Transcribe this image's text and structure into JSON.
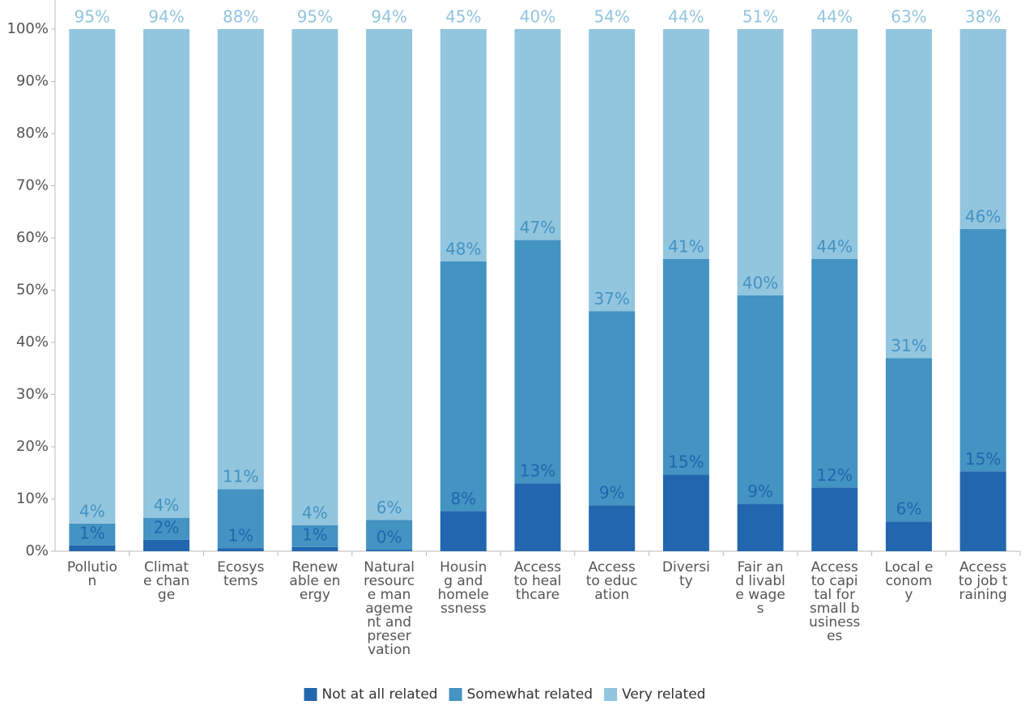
{
  "chart_data": {
    "type": "stacked_bar_percent",
    "categories": [
      "Pollution",
      "Climate change",
      "Ecosystems",
      "Renewable energy",
      "Natural resource management and preservation",
      "Housing and homelessness",
      "Access to healthcare",
      "Access to education",
      "Diversity",
      "Fair and livable wages",
      "Access to capital for small businesses",
      "Local economy",
      "Access to job training"
    ],
    "series": [
      {
        "name": "Not at all related",
        "color": "#2166ae",
        "values": [
          1.1,
          2.2,
          0.6,
          0.8,
          0.3,
          7.7,
          13.0,
          8.8,
          14.7,
          9.1,
          12.2,
          5.7,
          15.3
        ],
        "value_labels": [
          "1%",
          "2%",
          "1%",
          "1%",
          "0%",
          "8%",
          "13%",
          "9%",
          "15%",
          "9%",
          "12%",
          "6%",
          "15%"
        ]
      },
      {
        "name": "Somewhat related",
        "color": "#4393c3",
        "values": [
          4.2,
          4.2,
          11.3,
          4.2,
          5.7,
          47.8,
          46.6,
          37.2,
          41.3,
          39.9,
          43.8,
          31.3,
          46.4
        ],
        "value_labels": [
          "4%",
          "4%",
          "11%",
          "4%",
          "6%",
          "48%",
          "47%",
          "37%",
          "41%",
          "40%",
          "44%",
          "31%",
          "46%"
        ]
      },
      {
        "name": "Very related",
        "color": "#92c5de",
        "values": [
          94.7,
          93.6,
          88.1,
          95.0,
          94.0,
          44.5,
          40.4,
          54.0,
          44.0,
          51.0,
          44.0,
          63.0,
          38.3
        ],
        "value_labels": [
          "95%",
          "94%",
          "88%",
          "95%",
          "94%",
          "45%",
          "40%",
          "54%",
          "44%",
          "51%",
          "44%",
          "63%",
          "38%"
        ]
      }
    ],
    "ylim": [
      0,
      100
    ],
    "yticks": [
      {
        "value": 0,
        "label": "0%"
      },
      {
        "value": 10,
        "label": "10%"
      },
      {
        "value": 20,
        "label": "20%"
      },
      {
        "value": 30,
        "label": "30%"
      },
      {
        "value": 40,
        "label": "40%"
      },
      {
        "value": 50,
        "label": "50%"
      },
      {
        "value": 60,
        "label": "60%"
      },
      {
        "value": 70,
        "label": "70%"
      },
      {
        "value": 80,
        "label": "80%"
      },
      {
        "value": 90,
        "label": "90%"
      },
      {
        "value": 100,
        "label": "100%"
      }
    ],
    "legend": "bottom"
  }
}
